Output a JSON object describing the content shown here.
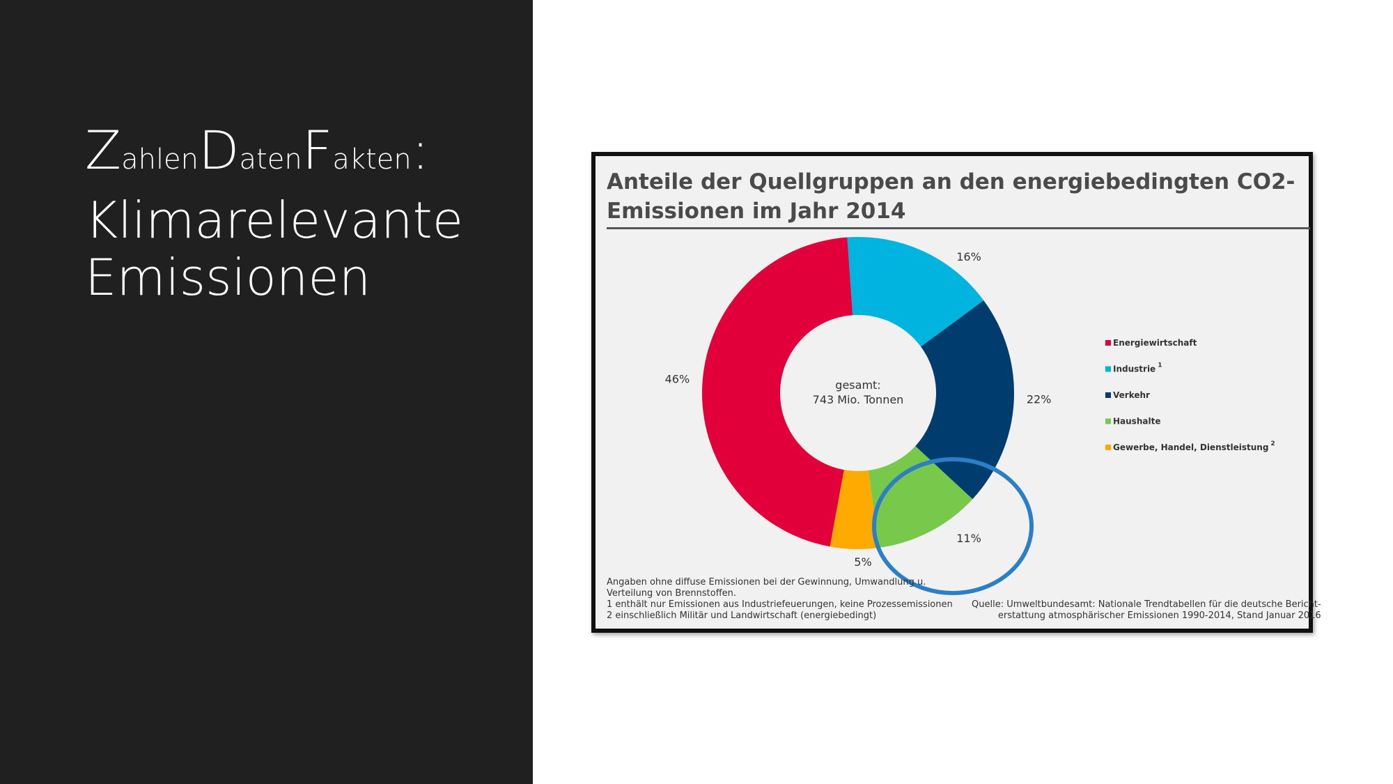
{
  "slide": {
    "title_line1_parts": [
      {
        "cap": "Z",
        "rest": "ahlen"
      },
      {
        "cap": "D",
        "rest": "aten"
      },
      {
        "cap": "F",
        "rest": "akten"
      }
    ],
    "title_colon": ":",
    "title_line2": "Klimarelevante",
    "title_line3": "Emissionen",
    "highlight_color": "#2a7fc7"
  },
  "chart_data": {
    "type": "pie",
    "variant": "donut",
    "title_line1": "Anteile der Quellgruppen an den energiebedingten CO2-",
    "title_line2": "Emissionen im Jahr 2014",
    "center_label_line1": "gesamt:",
    "center_label_line2": "743 Mio. Tonnen",
    "categories": [
      "Energiewirtschaft",
      "Industrie",
      "Verkehr",
      "Haushalte",
      "Gewerbe, Handel, Dienstleistung"
    ],
    "category_superscripts": [
      "",
      "1",
      "",
      "",
      "2"
    ],
    "values": [
      46,
      16,
      22,
      11,
      5
    ],
    "value_labels": [
      "46%",
      "16%",
      "22%",
      "11%",
      "5%"
    ],
    "colors": [
      "#e2003a",
      "#00b4e0",
      "#003d6e",
      "#78c84b",
      "#ffaa00"
    ],
    "legend_position": "right",
    "highlighted_category": "Haushalte",
    "footnotes_left": [
      "Angaben ohne diffuse Emissionen bei der Gewinnung, Umwandlung u.",
      "Verteilung von Brennstoffen.",
      "1 enthält nur Emissionen aus Industriefeuerungen, keine Prozessemissionen",
      "2 einschließlich Militär und Landwirtschaft (energiebedingt)"
    ],
    "footnotes_right": [
      "Quelle: Umweltbundesamt: Nationale Trendtabellen für die deutsche Bericht-",
      "erstattung atmosphärischer Emissionen 1990-2014, Stand Januar 2016"
    ]
  }
}
